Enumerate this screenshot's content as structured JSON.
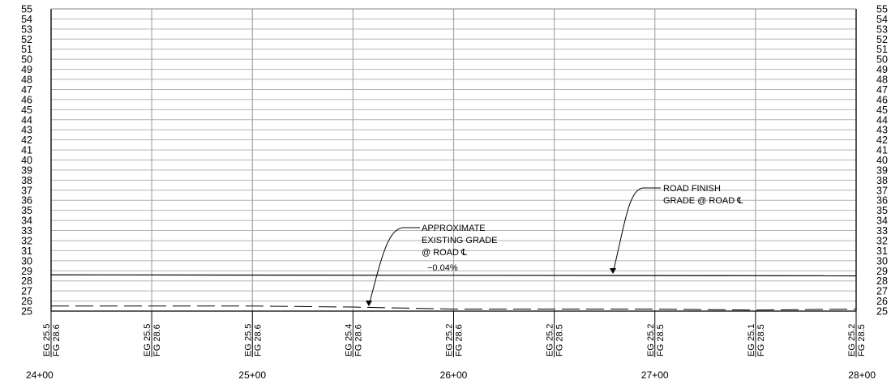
{
  "chart_data": {
    "type": "line",
    "title": "",
    "xlabel": "",
    "ylabel": "",
    "stations": [
      "24+00",
      "25+00",
      "26+00",
      "27+00",
      "28+00"
    ],
    "x_range": [
      2400,
      2800
    ],
    "ylim": [
      25,
      55
    ],
    "y_ticks": [
      25,
      26,
      27,
      28,
      29,
      30,
      31,
      32,
      33,
      34,
      35,
      36,
      37,
      38,
      39,
      40,
      41,
      42,
      43,
      44,
      45,
      46,
      47,
      48,
      49,
      50,
      51,
      52,
      53,
      54,
      55
    ],
    "grid": true,
    "series": [
      {
        "key": "existing",
        "style": "dashed",
        "x": [
          2400,
          2450,
          2500,
          2550,
          2600,
          2650,
          2700,
          2750,
          2800
        ],
        "y": [
          25.5,
          25.5,
          25.5,
          25.4,
          25.2,
          25.2,
          25.2,
          25.1,
          25.2
        ]
      },
      {
        "key": "finish",
        "style": "solid",
        "x": [
          2400,
          2800
        ],
        "y": [
          28.6,
          28.5
        ]
      }
    ],
    "elevations": [
      {
        "station": 2400,
        "eg": "EG 25.5",
        "fg": "FG 28.6"
      },
      {
        "station": 2450,
        "eg": "EG 25.5",
        "fg": "FG 28.6"
      },
      {
        "station": 2500,
        "eg": "EG 25.5",
        "fg": "FG 28.6"
      },
      {
        "station": 2550,
        "eg": "EG 25.4",
        "fg": "FG 28.6"
      },
      {
        "station": 2600,
        "eg": "EG 25.2",
        "fg": "FG 28.6"
      },
      {
        "station": 2650,
        "eg": "EG 25.2",
        "fg": "FG 28.5"
      },
      {
        "station": 2700,
        "eg": "EG 25.2",
        "fg": "FG 28.5"
      },
      {
        "station": 2750,
        "eg": "EG 25.1",
        "fg": "FG 28.5"
      },
      {
        "station": 2800,
        "eg": "EG 25.2",
        "fg": "FG 28.5"
      }
    ],
    "annotations": {
      "existing_grade": [
        "APPROXIMATE",
        "EXISTING GRADE",
        "@ ROAD ℄"
      ],
      "finish_grade": [
        "ROAD FINISH",
        "GRADE @ ROAD ℄"
      ],
      "slope": "−0.04%"
    }
  }
}
